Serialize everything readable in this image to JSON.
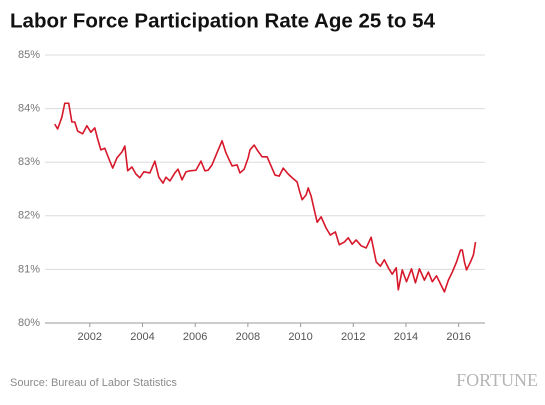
{
  "chart_data": {
    "type": "line",
    "title": "Labor Force Participation Rate Age 25 to 54",
    "source": "Source: Bureau of Labor Statistics",
    "brand": "FORTUNE",
    "x": [
      2000.67,
      2000.78,
      2000.94,
      2001.05,
      2001.2,
      2001.32,
      2001.43,
      2001.54,
      2001.73,
      2001.89,
      2002.04,
      2002.19,
      2002.3,
      2002.42,
      2002.57,
      2002.76,
      2002.87,
      2003.03,
      2003.22,
      2003.33,
      2003.44,
      2003.6,
      2003.75,
      2003.9,
      2004.05,
      2004.28,
      2004.47,
      2004.62,
      2004.78,
      2004.89,
      2005.04,
      2005.23,
      2005.35,
      2005.5,
      2005.65,
      2005.8,
      2006.03,
      2006.22,
      2006.37,
      2006.49,
      2006.64,
      2006.79,
      2007.02,
      2007.17,
      2007.4,
      2007.59,
      2007.7,
      2007.86,
      2008.01,
      2008.08,
      2008.24,
      2008.35,
      2008.54,
      2008.73,
      2008.88,
      2009.03,
      2009.19,
      2009.34,
      2009.53,
      2009.68,
      2009.87,
      2009.95,
      2010.06,
      2010.21,
      2010.29,
      2010.4,
      2010.52,
      2010.63,
      2010.78,
      2010.97,
      2011.13,
      2011.32,
      2011.47,
      2011.66,
      2011.81,
      2011.96,
      2012.11,
      2012.3,
      2012.49,
      2012.68,
      2012.87,
      2013.03,
      2013.18,
      2013.33,
      2013.48,
      2013.63,
      2013.71,
      2013.86,
      2014.02,
      2014.21,
      2014.36,
      2014.51,
      2014.7,
      2014.85,
      2015.0,
      2015.16,
      2015.31,
      2015.46,
      2015.61,
      2015.76,
      2015.92,
      2016.07,
      2016.14,
      2016.22,
      2016.3,
      2016.45,
      2016.56,
      2016.64
    ],
    "series": [
      {
        "name": "Participation rate",
        "color": "#d7182a",
        "values": [
          83.71,
          83.62,
          83.84,
          84.1,
          84.1,
          83.75,
          83.75,
          83.58,
          83.53,
          83.68,
          83.56,
          83.64,
          83.43,
          83.23,
          83.26,
          83.02,
          82.89,
          83.08,
          83.19,
          83.3,
          82.84,
          82.91,
          82.78,
          82.71,
          82.82,
          82.8,
          83.02,
          82.72,
          82.61,
          82.72,
          82.65,
          82.8,
          82.87,
          82.67,
          82.82,
          82.84,
          82.85,
          83.02,
          82.84,
          82.85,
          82.95,
          83.13,
          83.4,
          83.17,
          82.93,
          82.95,
          82.8,
          82.87,
          83.08,
          83.23,
          83.32,
          83.23,
          83.1,
          83.1,
          82.93,
          82.76,
          82.74,
          82.89,
          82.78,
          82.71,
          82.63,
          82.48,
          82.3,
          82.39,
          82.52,
          82.37,
          82.11,
          81.88,
          81.98,
          81.77,
          81.64,
          81.7,
          81.46,
          81.51,
          81.59,
          81.47,
          81.55,
          81.44,
          81.4,
          81.6,
          81.14,
          81.06,
          81.18,
          81.03,
          80.91,
          81.03,
          80.62,
          80.99,
          80.77,
          81.01,
          80.75,
          81.01,
          80.8,
          80.95,
          80.77,
          80.88,
          80.73,
          80.58,
          80.8,
          80.95,
          81.14,
          81.36,
          81.36,
          81.14,
          80.99,
          81.14,
          81.27,
          81.51
        ]
      }
    ],
    "xlim": [
      2000.3,
      2017.0
    ],
    "xticks": [
      2002,
      2004,
      2006,
      2008,
      2010,
      2012,
      2014,
      2016
    ],
    "ylim": [
      80,
      85
    ],
    "yticks": [
      {
        "value": 80,
        "label": "80%"
      },
      {
        "value": 81,
        "label": "81%"
      },
      {
        "value": 82,
        "label": "82%"
      },
      {
        "value": 83,
        "label": "83%"
      },
      {
        "value": 84,
        "label": "84%"
      },
      {
        "value": 85,
        "label": "85%"
      }
    ],
    "grid": true
  }
}
